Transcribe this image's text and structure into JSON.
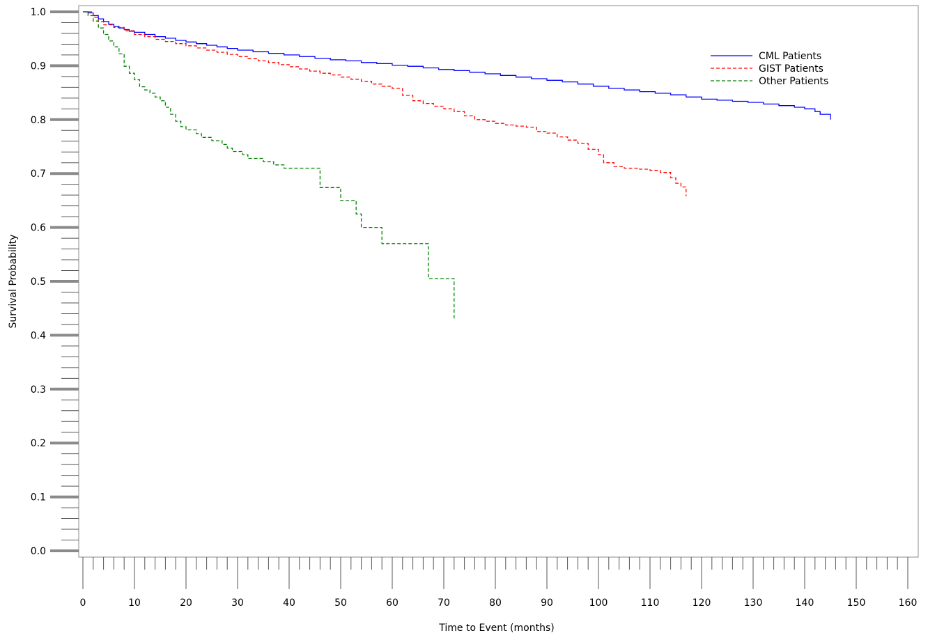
{
  "chart_data": {
    "type": "line",
    "title": "",
    "xlabel": "Time to Event (months)",
    "ylabel": "Survival Probability",
    "xlim": [
      0,
      160
    ],
    "ylim": [
      0,
      1.0
    ],
    "x_ticks": [
      "0",
      "10",
      "20",
      "30",
      "40",
      "50",
      "60",
      "70",
      "80",
      "90",
      "100",
      "110",
      "120",
      "130",
      "140",
      "150",
      "160"
    ],
    "y_ticks": [
      "0.0",
      "0.1",
      "0.2",
      "0.3",
      "0.4",
      "0.5",
      "0.6",
      "0.7",
      "0.8",
      "0.9",
      "1.0"
    ],
    "grid": false,
    "legend_position": "top-right",
    "series": [
      {
        "name": "CML Patients",
        "color": "#0000ff",
        "style": "solid",
        "points": [
          [
            0,
            1.0
          ],
          [
            1,
            0.998
          ],
          [
            2,
            0.993
          ],
          [
            3,
            0.987
          ],
          [
            4,
            0.982
          ],
          [
            5,
            0.977
          ],
          [
            6,
            0.973
          ],
          [
            7,
            0.97
          ],
          [
            8,
            0.967
          ],
          [
            9,
            0.964
          ],
          [
            10,
            0.962
          ],
          [
            12,
            0.958
          ],
          [
            14,
            0.954
          ],
          [
            16,
            0.951
          ],
          [
            18,
            0.947
          ],
          [
            20,
            0.944
          ],
          [
            22,
            0.941
          ],
          [
            24,
            0.938
          ],
          [
            26,
            0.935
          ],
          [
            28,
            0.932
          ],
          [
            30,
            0.929
          ],
          [
            33,
            0.926
          ],
          [
            36,
            0.923
          ],
          [
            39,
            0.92
          ],
          [
            42,
            0.917
          ],
          [
            45,
            0.914
          ],
          [
            48,
            0.911
          ],
          [
            51,
            0.909
          ],
          [
            54,
            0.906
          ],
          [
            57,
            0.904
          ],
          [
            60,
            0.901
          ],
          [
            63,
            0.899
          ],
          [
            66,
            0.896
          ],
          [
            69,
            0.893
          ],
          [
            72,
            0.891
          ],
          [
            75,
            0.888
          ],
          [
            78,
            0.885
          ],
          [
            81,
            0.882
          ],
          [
            84,
            0.879
          ],
          [
            87,
            0.876
          ],
          [
            90,
            0.873
          ],
          [
            93,
            0.87
          ],
          [
            96,
            0.866
          ],
          [
            99,
            0.862
          ],
          [
            102,
            0.858
          ],
          [
            105,
            0.855
          ],
          [
            108,
            0.852
          ],
          [
            111,
            0.849
          ],
          [
            114,
            0.846
          ],
          [
            117,
            0.842
          ],
          [
            120,
            0.838
          ],
          [
            123,
            0.836
          ],
          [
            126,
            0.834
          ],
          [
            129,
            0.832
          ],
          [
            132,
            0.829
          ],
          [
            135,
            0.826
          ],
          [
            138,
            0.823
          ],
          [
            140,
            0.82
          ],
          [
            142,
            0.815
          ],
          [
            143,
            0.81
          ],
          [
            145,
            0.805
          ],
          [
            145,
            0.8
          ]
        ]
      },
      {
        "name": "GIST Patients",
        "color": "#ff0000",
        "style": "dashed",
        "points": [
          [
            0,
            1.0
          ],
          [
            2,
            0.99
          ],
          [
            3,
            0.982
          ],
          [
            4,
            0.976
          ],
          [
            6,
            0.971
          ],
          [
            8,
            0.965
          ],
          [
            10,
            0.958
          ],
          [
            12,
            0.954
          ],
          [
            14,
            0.949
          ],
          [
            16,
            0.945
          ],
          [
            18,
            0.941
          ],
          [
            20,
            0.937
          ],
          [
            22,
            0.933
          ],
          [
            24,
            0.929
          ],
          [
            26,
            0.925
          ],
          [
            28,
            0.921
          ],
          [
            30,
            0.917
          ],
          [
            32,
            0.913
          ],
          [
            34,
            0.909
          ],
          [
            36,
            0.906
          ],
          [
            38,
            0.902
          ],
          [
            40,
            0.898
          ],
          [
            42,
            0.894
          ],
          [
            44,
            0.89
          ],
          [
            46,
            0.886
          ],
          [
            48,
            0.883
          ],
          [
            50,
            0.879
          ],
          [
            52,
            0.875
          ],
          [
            54,
            0.871
          ],
          [
            56,
            0.866
          ],
          [
            58,
            0.862
          ],
          [
            60,
            0.858
          ],
          [
            62,
            0.845
          ],
          [
            64,
            0.835
          ],
          [
            66,
            0.83
          ],
          [
            68,
            0.825
          ],
          [
            70,
            0.82
          ],
          [
            72,
            0.815
          ],
          [
            74,
            0.807
          ],
          [
            76,
            0.8
          ],
          [
            78,
            0.797
          ],
          [
            80,
            0.793
          ],
          [
            82,
            0.79
          ],
          [
            84,
            0.788
          ],
          [
            86,
            0.786
          ],
          [
            88,
            0.778
          ],
          [
            90,
            0.775
          ],
          [
            92,
            0.768
          ],
          [
            94,
            0.762
          ],
          [
            96,
            0.756
          ],
          [
            98,
            0.745
          ],
          [
            100,
            0.735
          ],
          [
            101,
            0.72
          ],
          [
            103,
            0.713
          ],
          [
            105,
            0.71
          ],
          [
            108,
            0.708
          ],
          [
            110,
            0.706
          ],
          [
            112,
            0.702
          ],
          [
            114,
            0.692
          ],
          [
            115,
            0.682
          ],
          [
            116,
            0.675
          ],
          [
            117,
            0.667
          ],
          [
            117,
            0.658
          ]
        ]
      },
      {
        "name": "Other Patients",
        "color": "#008000",
        "style": "dashed",
        "points": [
          [
            0,
            1.0
          ],
          [
            1,
            0.993
          ],
          [
            2,
            0.983
          ],
          [
            3,
            0.97
          ],
          [
            4,
            0.958
          ],
          [
            5,
            0.946
          ],
          [
            6,
            0.935
          ],
          [
            7,
            0.922
          ],
          [
            8,
            0.899
          ],
          [
            9,
            0.886
          ],
          [
            10,
            0.874
          ],
          [
            11,
            0.861
          ],
          [
            12,
            0.855
          ],
          [
            13,
            0.849
          ],
          [
            14,
            0.842
          ],
          [
            15,
            0.835
          ],
          [
            16,
            0.823
          ],
          [
            17,
            0.81
          ],
          [
            18,
            0.797
          ],
          [
            19,
            0.787
          ],
          [
            20,
            0.781
          ],
          [
            22,
            0.774
          ],
          [
            23,
            0.767
          ],
          [
            25,
            0.761
          ],
          [
            27,
            0.754
          ],
          [
            28,
            0.747
          ],
          [
            29,
            0.741
          ],
          [
            31,
            0.735
          ],
          [
            32,
            0.728
          ],
          [
            35,
            0.722
          ],
          [
            37,
            0.716
          ],
          [
            39,
            0.71
          ],
          [
            42,
            0.71
          ],
          [
            46,
            0.71
          ],
          [
            46,
            0.674
          ],
          [
            50,
            0.674
          ],
          [
            50,
            0.65
          ],
          [
            53,
            0.65
          ],
          [
            53,
            0.625
          ],
          [
            54,
            0.6
          ],
          [
            58,
            0.6
          ],
          [
            58,
            0.57
          ],
          [
            67,
            0.57
          ],
          [
            67,
            0.505
          ],
          [
            72,
            0.505
          ],
          [
            72,
            0.43
          ]
        ]
      }
    ]
  }
}
